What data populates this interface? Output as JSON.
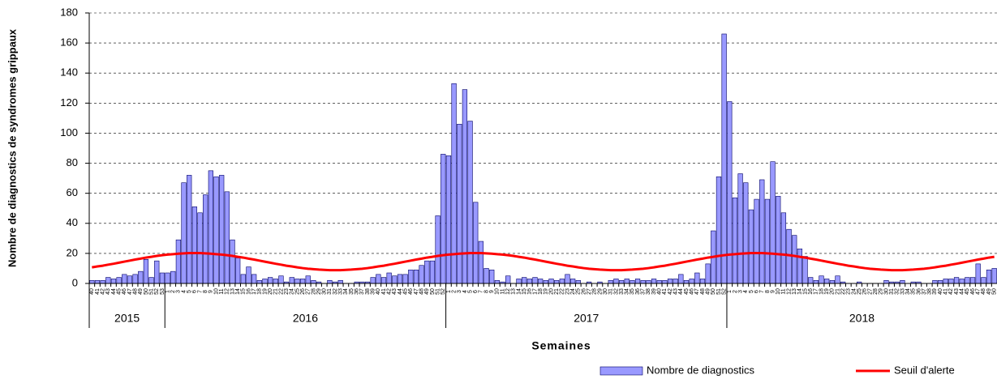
{
  "chart_data": {
    "type": "bar",
    "y_label": "Nombre de diagnostics de syndromes grippaux",
    "x_label": "Semaines",
    "ylim": [
      0,
      180
    ],
    "yticks": [
      0,
      20,
      40,
      60,
      80,
      100,
      120,
      140,
      160,
      180
    ],
    "grid": true,
    "categories": [
      "40",
      "41",
      "42",
      "43",
      "44",
      "45",
      "46",
      "47",
      "48",
      "49",
      "50",
      "51",
      "52",
      "53",
      "1",
      "2",
      "3",
      "4",
      "5",
      "6",
      "7",
      "8",
      "9",
      "10",
      "11",
      "12",
      "13",
      "14",
      "15",
      "16",
      "17",
      "18",
      "19",
      "20",
      "21",
      "22",
      "23",
      "24",
      "25",
      "26",
      "27",
      "28",
      "29",
      "30",
      "31",
      "32",
      "33",
      "34",
      "35",
      "36",
      "37",
      "38",
      "39",
      "40",
      "41",
      "42",
      "43",
      "44",
      "45",
      "46",
      "47",
      "48",
      "49",
      "50",
      "51",
      "52",
      "1",
      "2",
      "3",
      "4",
      "5",
      "6",
      "7",
      "8",
      "9",
      "10",
      "11",
      "12",
      "13",
      "14",
      "15",
      "16",
      "17",
      "18",
      "19",
      "20",
      "21",
      "22",
      "23",
      "24",
      "25",
      "26",
      "27",
      "28",
      "29",
      "30",
      "31",
      "32",
      "33",
      "34",
      "35",
      "36",
      "37",
      "38",
      "39",
      "40",
      "41",
      "42",
      "43",
      "44",
      "45",
      "46",
      "47",
      "48",
      "49",
      "50",
      "51",
      "52",
      "1",
      "2",
      "3",
      "4",
      "5",
      "6",
      "7",
      "8",
      "9",
      "10",
      "11",
      "12",
      "13",
      "14",
      "15",
      "16",
      "17",
      "18",
      "19",
      "20",
      "21",
      "22",
      "23",
      "24",
      "25",
      "26",
      "27",
      "28",
      "29",
      "30",
      "31",
      "32",
      "33",
      "34",
      "35",
      "36",
      "37",
      "38",
      "39",
      "40",
      "41",
      "42",
      "43",
      "44",
      "45",
      "46",
      "47",
      "48",
      "49",
      "50"
    ],
    "groups": [
      {
        "label": "2015",
        "count": 14
      },
      {
        "label": "2016",
        "count": 52
      },
      {
        "label": "2017",
        "count": 52
      },
      {
        "label": "2018",
        "count": 50
      }
    ],
    "series": [
      {
        "name": "Nombre de diagnostics",
        "type": "bar",
        "color": "#9999ff",
        "values": [
          2,
          2,
          2,
          4,
          3,
          4,
          6,
          5,
          6,
          8,
          16,
          4,
          15,
          7,
          7,
          8,
          29,
          67,
          72,
          51,
          47,
          59,
          75,
          71,
          72,
          61,
          29,
          17,
          6,
          11,
          6,
          2,
          3,
          4,
          3,
          5,
          1,
          4,
          3,
          3,
          5,
          2,
          1,
          0,
          2,
          1,
          2,
          0,
          0,
          1,
          1,
          1,
          4,
          6,
          4,
          7,
          5,
          6,
          6,
          9,
          9,
          12,
          15,
          15,
          45,
          86,
          85,
          133,
          106,
          129,
          108,
          54,
          28,
          10,
          9,
          2,
          1,
          5,
          0,
          3,
          4,
          3,
          4,
          3,
          2,
          3,
          2,
          3,
          6,
          3,
          2,
          0,
          1,
          0,
          1,
          0,
          2,
          3,
          2,
          3,
          2,
          3,
          2,
          2,
          3,
          2,
          2,
          3,
          3,
          6,
          2,
          3,
          7,
          3,
          13,
          35,
          71,
          166,
          121,
          57,
          73,
          67,
          49,
          56,
          69,
          56,
          81,
          58,
          47,
          36,
          32,
          23,
          18,
          4,
          2,
          5,
          3,
          2,
          5,
          1,
          0,
          0,
          1,
          0,
          0,
          0,
          0,
          2,
          1,
          1,
          2,
          0,
          1,
          1,
          0,
          0,
          2,
          2,
          3,
          3,
          4,
          3,
          4,
          4,
          13,
          4,
          9,
          10
        ]
      },
      {
        "name": "Seuil d'alerte",
        "type": "line",
        "color": "#ff0000",
        "values": [
          10.7,
          11.3,
          11.8,
          12.5,
          13.1,
          13.8,
          14.5,
          15.2,
          15.9,
          16.5,
          17.2,
          17.7,
          18.3,
          18.8,
          19.2,
          19.5,
          19.8,
          20.0,
          20.2,
          20.2,
          20.2,
          20.0,
          19.8,
          19.5,
          19.2,
          18.8,
          18.3,
          17.7,
          17.2,
          16.5,
          15.9,
          15.2,
          14.5,
          13.8,
          13.1,
          12.5,
          11.8,
          11.3,
          10.7,
          10.2,
          9.8,
          9.5,
          9.2,
          9.0,
          8.8,
          8.8,
          8.8,
          9.0,
          9.2,
          9.5,
          9.8,
          10.2,
          10.7,
          11.3,
          11.8,
          12.5,
          13.1,
          13.8,
          14.5,
          15.2,
          15.9,
          16.5,
          17.2,
          17.7,
          18.3,
          18.8,
          19.2,
          19.5,
          19.8,
          20.0,
          20.2,
          20.2,
          20.2,
          20.0,
          19.8,
          19.5,
          19.2,
          18.8,
          18.3,
          17.7,
          17.2,
          16.5,
          15.9,
          15.2,
          14.5,
          13.8,
          13.1,
          12.5,
          11.8,
          11.3,
          10.7,
          10.2,
          9.8,
          9.5,
          9.2,
          9.0,
          8.8,
          8.8,
          8.8,
          9.0,
          9.2,
          9.5,
          9.8,
          10.2,
          10.7,
          11.3,
          11.8,
          12.5,
          13.1,
          13.8,
          14.5,
          15.2,
          15.9,
          16.5,
          17.2,
          17.7,
          18.3,
          18.8,
          19.2,
          19.5,
          19.8,
          20.0,
          20.2,
          20.2,
          20.2,
          20.0,
          19.8,
          19.5,
          19.2,
          18.8,
          18.3,
          17.7,
          17.2,
          16.5,
          15.9,
          15.2,
          14.5,
          13.8,
          13.1,
          12.5,
          11.8,
          11.3,
          10.7,
          10.2,
          9.8,
          9.5,
          9.2,
          9.0,
          8.8,
          8.8,
          8.8,
          9.0,
          9.2,
          9.5,
          9.8,
          10.2,
          10.7,
          11.3,
          11.8,
          12.5,
          13.1,
          13.8,
          14.5,
          15.2,
          15.9,
          16.5,
          17.2,
          17.7
        ]
      }
    ]
  }
}
